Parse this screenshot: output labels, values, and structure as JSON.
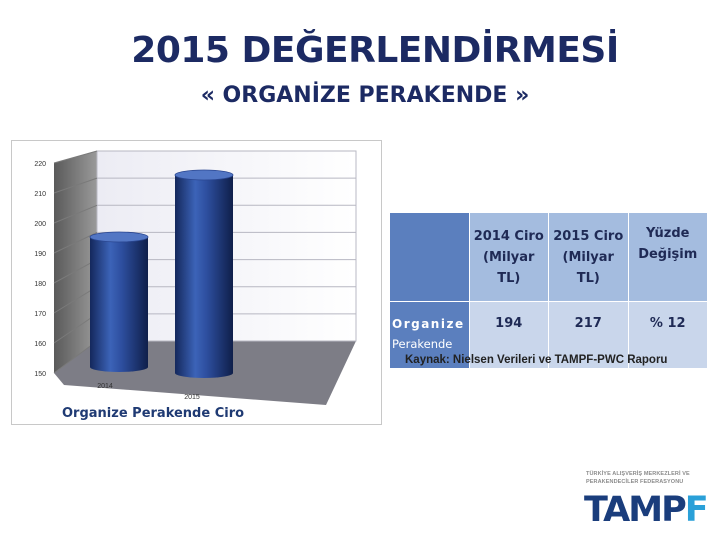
{
  "header": {
    "title": "2015 DEĞERLENDİRMESİ",
    "subtitle": "« ORGANİZE PERAKENDE »"
  },
  "chart_data": {
    "type": "bar",
    "style": "3d-cylinder",
    "categories": [
      "2014",
      "2015"
    ],
    "values": [
      194,
      217
    ],
    "ylim": [
      150,
      220
    ],
    "yticks": [
      150,
      160,
      170,
      180,
      190,
      200,
      210,
      220
    ],
    "caption": "Organize Perakende Ciro",
    "grid": true,
    "bar_color": "#2b4c9c"
  },
  "table": {
    "headers": [
      "",
      "2014 Ciro (Milyar TL)",
      "2015 Ciro (Milyar TL)",
      "Yüzde Değişim"
    ],
    "header_lines": [
      [],
      [
        "2014 Ciro",
        "(Milyar",
        "TL)"
      ],
      [
        "2015 Ciro",
        "(Milyar",
        "TL)"
      ],
      [
        "Yüzde",
        "Değişim"
      ]
    ],
    "row": {
      "label_line1": "Organize",
      "label_line2": "Perakende",
      "values": [
        "194",
        "217",
        "% 12"
      ]
    }
  },
  "source": "Kaynak: Nielsen Verileri ve TAMPF-PWC Raporu",
  "logo": {
    "org_line1": "TÜRKİYE ALIŞVERİŞ MERKEZLERİ VE",
    "org_line2": "PERAKENDECİLER FEDERASYONU",
    "word_main": "TAMP",
    "word_accent": "F"
  },
  "colors": {
    "title": "#1c2a63",
    "table_header": "#a4bcdf",
    "table_corner": "#5b7fbe",
    "table_body": "#c9d6eb"
  }
}
